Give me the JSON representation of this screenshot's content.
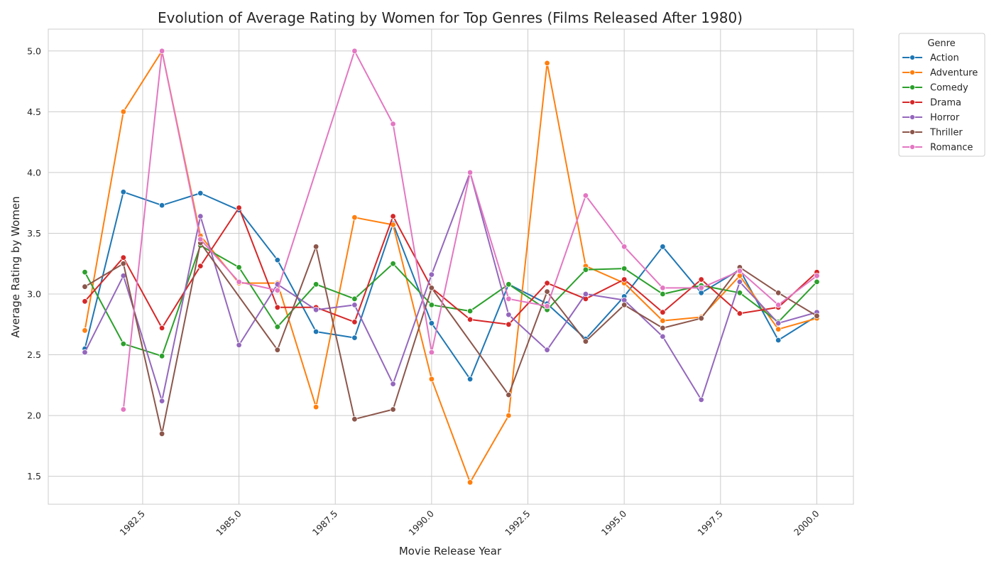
{
  "chart_data": {
    "type": "line",
    "title": "Evolution of Average Rating by Women for Top Genres (Films Released After 1980)",
    "xlabel": "Movie Release Year",
    "ylabel": "Average Rating by Women",
    "xlim": [
      1980.05,
      2000.95
    ],
    "ylim": [
      1.27,
      5.18
    ],
    "x_ticks": [
      1982.5,
      1985.0,
      1987.5,
      1990.0,
      1992.5,
      1995.0,
      1997.5,
      2000.0
    ],
    "x_tick_labels": [
      "1982.5",
      "1985.0",
      "1987.5",
      "1990.0",
      "1992.5",
      "1995.0",
      "1997.5",
      "2000.0"
    ],
    "y_ticks": [
      1.5,
      2.0,
      2.5,
      3.0,
      3.5,
      4.0,
      4.5,
      5.0
    ],
    "y_tick_labels": [
      "1.5",
      "2.0",
      "2.5",
      "3.0",
      "3.5",
      "4.0",
      "4.5",
      "5.0"
    ],
    "grid": true,
    "legend": {
      "title": "Genre",
      "position": "outside-top-right"
    },
    "series": [
      {
        "name": "Action",
        "color": "#1f77b4",
        "x": [
          1981,
          1982,
          1983,
          1984,
          1985,
          1986,
          1987,
          1988,
          1989,
          1990,
          1991,
          1992,
          1993,
          1994,
          1995,
          1996,
          1997,
          1998,
          1999,
          2000
        ],
        "y": [
          2.55,
          3.84,
          3.73,
          3.83,
          3.69,
          3.28,
          2.69,
          2.64,
          3.58,
          2.76,
          2.3,
          3.08,
          2.92,
          2.63,
          2.98,
          3.39,
          3.01,
          3.2,
          2.62,
          2.82
        ]
      },
      {
        "name": "Adventure",
        "color": "#ff7f0e",
        "x": [
          1981,
          1982,
          1983,
          1984,
          1985,
          1986,
          1987,
          1988,
          1989,
          1990,
          1991,
          1992,
          1993,
          1994,
          1995,
          1996,
          1997,
          1998,
          1999,
          2000
        ],
        "y": [
          2.7,
          4.5,
          5.0,
          3.48,
          3.09,
          3.09,
          2.07,
          3.63,
          3.57,
          2.3,
          1.45,
          2.0,
          4.9,
          3.23,
          3.09,
          2.78,
          2.81,
          3.15,
          2.71,
          2.8
        ]
      },
      {
        "name": "Comedy",
        "color": "#2ca02c",
        "x": [
          1981,
          1982,
          1983,
          1984,
          1985,
          1986,
          1987,
          1988,
          1989,
          1990,
          1991,
          1992,
          1993,
          1994,
          1995,
          1996,
          1997,
          1998,
          1999,
          2000
        ],
        "y": [
          3.18,
          2.59,
          2.49,
          3.4,
          3.22,
          2.73,
          3.08,
          2.96,
          3.25,
          2.91,
          2.86,
          3.08,
          2.87,
          3.2,
          3.21,
          3.0,
          3.07,
          3.01,
          2.77,
          3.1
        ]
      },
      {
        "name": "Drama",
        "color": "#d62728",
        "x": [
          1981,
          1982,
          1983,
          1984,
          1985,
          1986,
          1987,
          1988,
          1989,
          1990,
          1991,
          1992,
          1993,
          1994,
          1995,
          1996,
          1997,
          1998,
          1999,
          2000
        ],
        "y": [
          2.94,
          3.3,
          2.72,
          3.23,
          3.71,
          2.89,
          2.89,
          2.77,
          3.64,
          3.05,
          2.79,
          2.75,
          3.09,
          2.96,
          3.12,
          2.85,
          3.12,
          2.84,
          2.89,
          3.18
        ]
      },
      {
        "name": "Horror",
        "color": "#9467bd",
        "x": [
          1981,
          1982,
          1983,
          1984,
          1985,
          1986,
          1987,
          1988,
          1989,
          1990,
          1991,
          1992,
          1993,
          1994,
          1995,
          1996,
          1997,
          1998,
          1999,
          2000
        ],
        "y": [
          2.52,
          3.15,
          2.12,
          3.64,
          2.58,
          3.08,
          2.87,
          2.91,
          2.26,
          3.16,
          4.0,
          2.83,
          2.54,
          3.0,
          2.95,
          2.65,
          2.13,
          3.1,
          2.76,
          2.85
        ]
      },
      {
        "name": "Thriller",
        "color": "#8c564b",
        "x": [
          1981,
          1982,
          1983,
          1984,
          1985,
          1986,
          1987,
          1988,
          1989,
          1990,
          1991,
          1992,
          1993,
          1994,
          1995,
          1996,
          1997,
          1998,
          1999,
          2000
        ],
        "y": [
          3.06,
          3.25,
          1.85,
          3.42,
          null,
          2.54,
          3.39,
          1.97,
          2.05,
          3.05,
          null,
          2.17,
          3.02,
          2.61,
          2.91,
          2.72,
          2.8,
          3.22,
          3.01,
          2.82
        ]
      },
      {
        "name": "Romance",
        "color": "#e377c2",
        "x": [
          1982,
          1983,
          1984,
          1985,
          1986,
          1988,
          1989,
          1990,
          1991,
          1992,
          1993,
          1994,
          1995,
          1996,
          1997,
          1998,
          1999,
          2000
        ],
        "y": [
          2.05,
          5.0,
          3.45,
          3.1,
          3.03,
          5.0,
          4.4,
          2.52,
          4.0,
          2.96,
          2.9,
          3.81,
          3.39,
          3.05,
          3.05,
          3.19,
          2.91,
          3.15
        ]
      }
    ]
  }
}
